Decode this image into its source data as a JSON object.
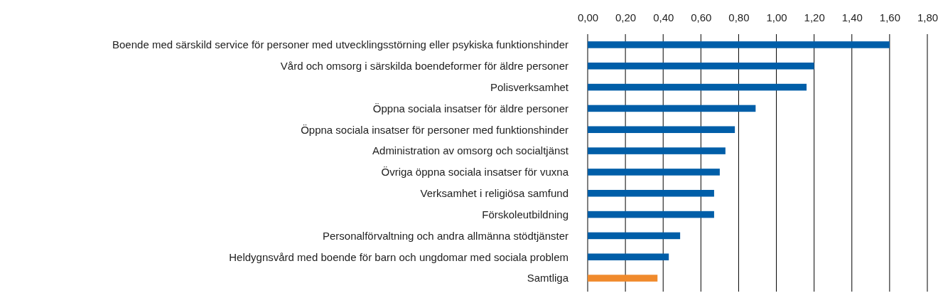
{
  "chart_data": {
    "type": "bar",
    "orientation": "horizontal",
    "categories": [
      "Boende med särskild service för personer med utvecklingsstörning eller psykiska funktionshinder",
      "Vård och omsorg i särskilda boendeformer för äldre personer",
      "Polisverksamhet",
      "Öppna sociala insatser för äldre personer",
      "Öppna sociala insatser för personer med funktionshinder",
      "Administration av omsorg och socialtjänst",
      "Övriga öppna sociala insatser för vuxna",
      "Verksamhet i religiösa samfund",
      "Förskoleutbildning",
      "Personalförvaltning och andra allmänna stödtjänster",
      "Heldygnsvård med boende för barn och ungdomar med sociala problem",
      "Samtliga"
    ],
    "values": [
      1.6,
      1.2,
      1.16,
      0.89,
      0.78,
      0.73,
      0.7,
      0.67,
      0.67,
      0.49,
      0.43,
      0.37
    ],
    "colors": [
      "#005ea8",
      "#005ea8",
      "#005ea8",
      "#005ea8",
      "#005ea8",
      "#005ea8",
      "#005ea8",
      "#005ea8",
      "#005ea8",
      "#005ea8",
      "#005ea8",
      "#f08a2c"
    ],
    "xlim": [
      0,
      1.8
    ],
    "xticks": [
      {
        "value": 0,
        "label": "0,00"
      },
      {
        "value": 0.2,
        "label": "0,20"
      },
      {
        "value": 0.4,
        "label": "0,40"
      },
      {
        "value": 0.6,
        "label": "0,60"
      },
      {
        "value": 0.8,
        "label": "0,80"
      },
      {
        "value": 1.0,
        "label": "1,00"
      },
      {
        "value": 1.2,
        "label": "1,20"
      },
      {
        "value": 1.4,
        "label": "1,40"
      },
      {
        "value": 1.6,
        "label": "1,60"
      },
      {
        "value": 1.8,
        "label": "1,80"
      }
    ],
    "grid": "x"
  }
}
